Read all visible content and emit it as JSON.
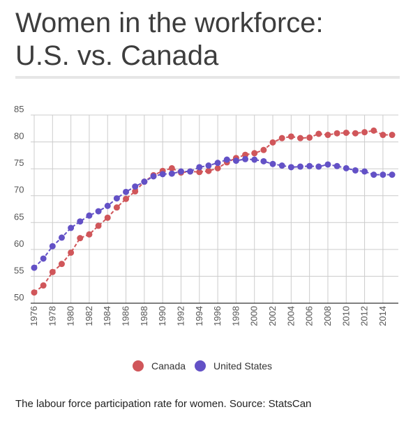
{
  "title_line1": "Women in the workforce:",
  "title_line2": "U.S. vs. Canada",
  "caption": "The labour force participation rate for women. Source: StatsCan",
  "chart_data": {
    "type": "line",
    "x": [
      1976,
      1977,
      1978,
      1979,
      1980,
      1981,
      1982,
      1983,
      1984,
      1985,
      1986,
      1987,
      1988,
      1989,
      1990,
      1991,
      1992,
      1993,
      1994,
      1995,
      1996,
      1997,
      1998,
      1999,
      2000,
      2001,
      2002,
      2003,
      2004,
      2005,
      2006,
      2007,
      2008,
      2009,
      2010,
      2011,
      2012,
      2013,
      2014,
      2015
    ],
    "xticks": [
      "1976",
      "1978",
      "1980",
      "1982",
      "1984",
      "1986",
      "1988",
      "1990",
      "1992",
      "1994",
      "1996",
      "1998",
      "2000",
      "2002",
      "2004",
      "2006",
      "2008",
      "2010",
      "2012",
      "2014"
    ],
    "yticks": [
      "50",
      "55",
      "60",
      "65",
      "70",
      "75",
      "80",
      "85"
    ],
    "ylim": [
      50,
      85
    ],
    "series": [
      {
        "name": "Canada",
        "color": "#d0565a",
        "values": [
          52.0,
          53.3,
          55.8,
          57.3,
          59.4,
          62.1,
          62.8,
          64.4,
          65.9,
          67.8,
          69.4,
          70.8,
          72.6,
          73.8,
          74.6,
          75.1,
          74.3,
          74.5,
          74.4,
          74.6,
          75.1,
          76.2,
          77.0,
          77.6,
          77.9,
          78.5,
          79.9,
          80.7,
          81.0,
          80.7,
          80.8,
          81.5,
          81.3,
          81.6,
          81.7,
          81.6,
          81.8,
          82.1,
          81.3,
          81.3
        ]
      },
      {
        "name": "United States",
        "color": "#6351c6",
        "values": [
          56.6,
          58.3,
          60.6,
          62.2,
          64.0,
          65.2,
          66.3,
          67.1,
          68.1,
          69.5,
          70.7,
          71.7,
          72.6,
          73.6,
          74.0,
          74.1,
          74.5,
          74.5,
          75.3,
          75.6,
          76.1,
          76.7,
          76.5,
          76.8,
          76.7,
          76.4,
          75.9,
          75.6,
          75.3,
          75.4,
          75.5,
          75.4,
          75.8,
          75.5,
          75.1,
          74.7,
          74.5,
          73.9,
          73.9,
          73.9
        ]
      }
    ],
    "legend_position": "bottom",
    "grid": true
  }
}
